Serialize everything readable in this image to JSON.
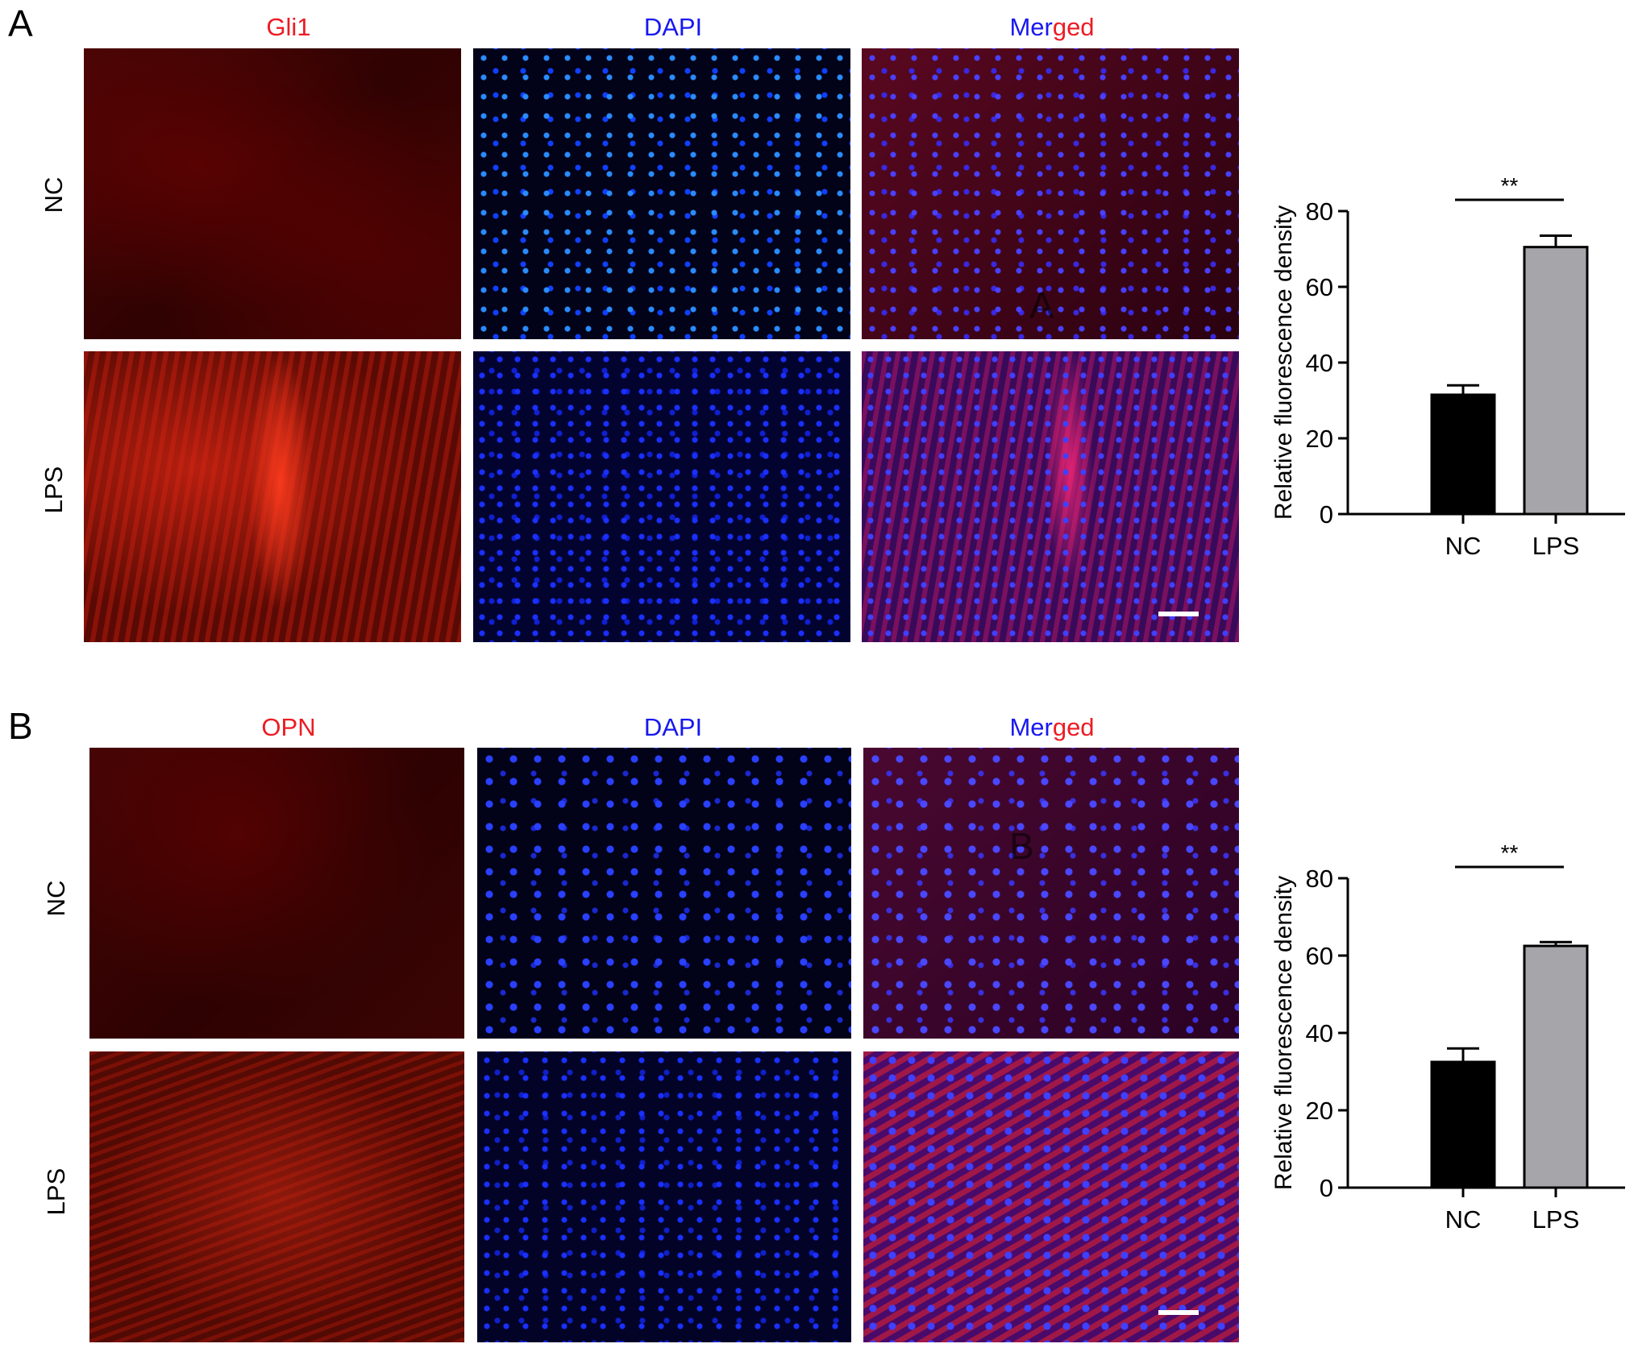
{
  "panels": [
    {
      "letter": "A",
      "col_titles": {
        "marker": "Gli1",
        "dapi": "DAPI",
        "merged_part1": "Mer",
        "merged_part2": "ged"
      },
      "rows": [
        "NC",
        "LPS"
      ],
      "watermark": "A"
    },
    {
      "letter": "B",
      "col_titles": {
        "marker": "OPN",
        "dapi": "DAPI",
        "merged_part1": "Mer",
        "merged_part2": "ged"
      },
      "rows": [
        "NC",
        "LPS"
      ],
      "watermark": "B"
    }
  ],
  "colors": {
    "title_red": "#ec1c24",
    "title_blue": "#1818f0",
    "bar_nc": "#000000",
    "bar_lps": "#a5a5aa"
  },
  "chart_data": [
    {
      "type": "bar",
      "categories": [
        "NC",
        "LPS"
      ],
      "values": [
        31.5,
        70.5
      ],
      "error": [
        2.5,
        3.0
      ],
      "ylabel": "Relative fluorescence density",
      "ylim": [
        0,
        80
      ],
      "yticks": [
        0,
        20,
        40,
        60,
        80
      ],
      "significance": {
        "label": "**",
        "between": [
          "NC",
          "LPS"
        ]
      }
    },
    {
      "type": "bar",
      "categories": [
        "NC",
        "LPS"
      ],
      "values": [
        32.5,
        62.5
      ],
      "error": [
        3.5,
        1.0
      ],
      "ylabel": "Relative fluorescence density",
      "ylim": [
        0,
        80
      ],
      "yticks": [
        0,
        20,
        40,
        60,
        80
      ],
      "significance": {
        "label": "**",
        "between": [
          "NC",
          "LPS"
        ]
      }
    }
  ]
}
